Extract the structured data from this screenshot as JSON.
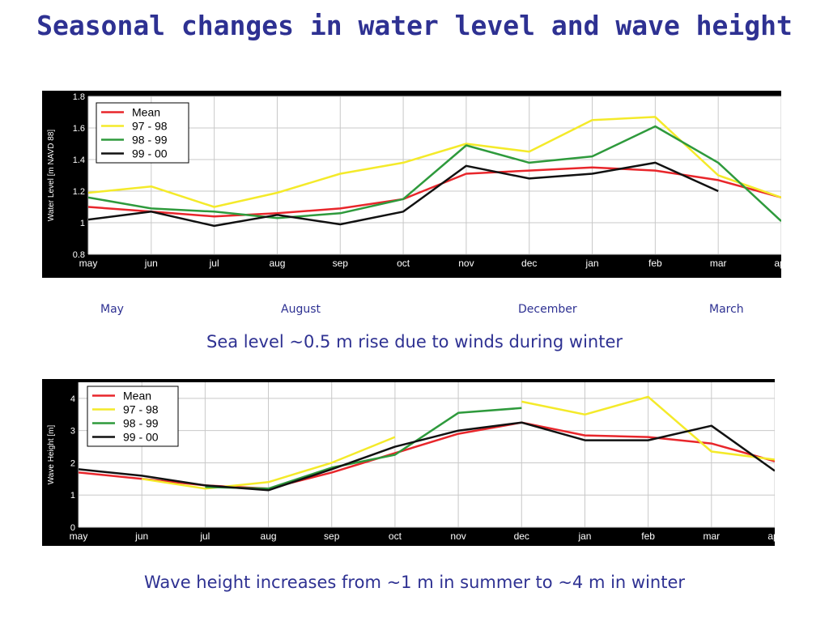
{
  "title": "Seasonal changes in water level and wave height",
  "month_labels": [
    "May",
    "August",
    "December",
    "March"
  ],
  "caption1": "Sea level ~0.5 m rise due to winds during winter",
  "caption2": "Wave height increases from ~1 m in summer to ~4 m in winter",
  "colors": {
    "title": "#2e3192",
    "mean": "#e8262b",
    "y9798": "#f4ea2a",
    "y9899": "#2e9a3c",
    "y9900": "#111111"
  },
  "chart_data": [
    {
      "type": "line",
      "ylabel": "Water Level [m NAVD 88]",
      "xlabel": "",
      "categories": [
        "may",
        "jun",
        "jul",
        "aug",
        "sep",
        "oct",
        "nov",
        "dec",
        "jan",
        "feb",
        "mar",
        "apr"
      ],
      "ylim": [
        0.8,
        1.8
      ],
      "yticks": [
        "0.8",
        "1",
        "1.2",
        "1.4",
        "1.6",
        "1.8"
      ],
      "ytick_values": [
        0.8,
        1.0,
        1.2,
        1.4,
        1.6,
        1.8
      ],
      "grid": true,
      "legend_position": "top-left",
      "series": [
        {
          "name": "Mean",
          "color": "#e8262b",
          "values": [
            1.1,
            1.07,
            1.04,
            1.06,
            1.09,
            1.15,
            1.31,
            1.33,
            1.35,
            1.33,
            1.27,
            1.16
          ]
        },
        {
          "name": "97 - 98",
          "color": "#f4ea2a",
          "values": [
            1.19,
            1.23,
            1.1,
            1.19,
            1.31,
            1.38,
            1.5,
            1.45,
            1.65,
            1.67,
            1.3,
            1.16
          ]
        },
        {
          "name": "98 - 99",
          "color": "#2e9a3c",
          "values": [
            1.16,
            1.09,
            1.07,
            1.03,
            1.06,
            1.15,
            1.49,
            1.38,
            1.42,
            1.61,
            1.38,
            1.01
          ]
        },
        {
          "name": "99 - 00",
          "color": "#111111",
          "values": [
            1.02,
            1.07,
            0.98,
            1.05,
            0.99,
            1.07,
            1.36,
            1.28,
            1.31,
            1.38,
            1.2,
            null
          ]
        }
      ]
    },
    {
      "type": "line",
      "ylabel": "Wave Height [m]",
      "xlabel": "",
      "categories": [
        "may",
        "jun",
        "jul",
        "aug",
        "sep",
        "oct",
        "nov",
        "dec",
        "jan",
        "feb",
        "mar",
        "apr"
      ],
      "ylim": [
        0,
        4.5
      ],
      "yticks": [
        "0",
        "1",
        "2",
        "3",
        "4"
      ],
      "ytick_values": [
        0,
        1,
        2,
        3,
        4
      ],
      "grid": true,
      "legend_position": "top-left",
      "series": [
        {
          "name": "Mean",
          "color": "#e8262b",
          "values": [
            1.7,
            1.5,
            1.3,
            1.2,
            1.7,
            2.3,
            2.9,
            3.25,
            2.85,
            2.8,
            2.6,
            2.05
          ]
        },
        {
          "name": "97 - 98",
          "color": "#f4ea2a",
          "values": [
            null,
            1.5,
            1.2,
            1.4,
            2.0,
            2.8,
            null,
            3.9,
            3.5,
            4.05,
            2.35,
            2.1
          ]
        },
        {
          "name": "98 - 99",
          "color": "#2e9a3c",
          "values": [
            null,
            null,
            1.25,
            1.2,
            1.85,
            2.25,
            3.55,
            3.7,
            null,
            null,
            null,
            null
          ]
        },
        {
          "name": "99 - 00",
          "color": "#111111",
          "values": [
            1.8,
            1.6,
            1.3,
            1.15,
            1.8,
            2.5,
            3.0,
            3.25,
            2.7,
            2.7,
            3.15,
            1.75
          ]
        }
      ]
    }
  ]
}
